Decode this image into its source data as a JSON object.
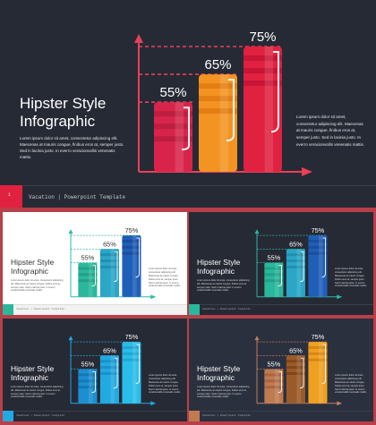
{
  "slide": {
    "title": "Hipster Style\nInfographic",
    "left_text": "Lorem ipsum dolor sit amet, consectetur adipiscing elit. Maecenas at mauris congue, finibus eros at, semper justo. Sed in lacinia justo. In everro veracionvallis venenatis mattis.",
    "right_text": "Lorem ipsum dolor sit amet, consectetur adipiscing elit. Maecenas at mauris congue, finibus eros at, semper justo. Sed in lacinia justo. In everro veracionvallis venenatis mattis.",
    "footer_title": "Vacation",
    "footer_separator": "|",
    "footer_subtitle": "Powerpoint Template",
    "slide_number": "1",
    "bars": [
      {
        "label": "55%",
        "value": 55
      },
      {
        "label": "65%",
        "value": 65
      },
      {
        "label": "75%",
        "value": 75
      }
    ]
  },
  "variants": [
    {
      "name": "red-dark",
      "bg": "#262a35",
      "text": "#ffffff",
      "axis": "#e8405a",
      "bars": [
        "#d8244a",
        "#f39321",
        "#e0213f"
      ],
      "stripe": [
        "#b71c3c",
        "#e07810",
        "#c21234"
      ]
    },
    {
      "name": "teal-light",
      "bg": "#ffffff",
      "text": "#333333",
      "axis": "#2ab8a8",
      "bars": [
        "#2ab89c",
        "#2aa6c6",
        "#1f5fb8"
      ],
      "stripe": [
        "#1f9a82",
        "#1f8aab",
        "#1a4a96"
      ]
    },
    {
      "name": "teal-dark",
      "bg": "#262a35",
      "text": "#ffffff",
      "axis": "#2ab8a8",
      "bars": [
        "#2ab89c",
        "#2aa6c6",
        "#1f5fb8"
      ],
      "stripe": [
        "#1f9a82",
        "#1f8aab",
        "#1a4a96"
      ]
    },
    {
      "name": "blue-dark",
      "bg": "#262a35",
      "text": "#ffffff",
      "axis": "#21a9e1",
      "bars": [
        "#1b8fd0",
        "#21a9e1",
        "#2bbde9"
      ],
      "stripe": [
        "#146fb0",
        "#1a8ac0",
        "#1fa0cc"
      ]
    },
    {
      "name": "brown-dark",
      "bg": "#2b303e",
      "text": "#ffffff",
      "axis": "#c08060",
      "bars": [
        "#c07a50",
        "#9a5a2a",
        "#f0a020"
      ],
      "stripe": [
        "#a06040",
        "#7a4218",
        "#d08010"
      ]
    }
  ]
}
